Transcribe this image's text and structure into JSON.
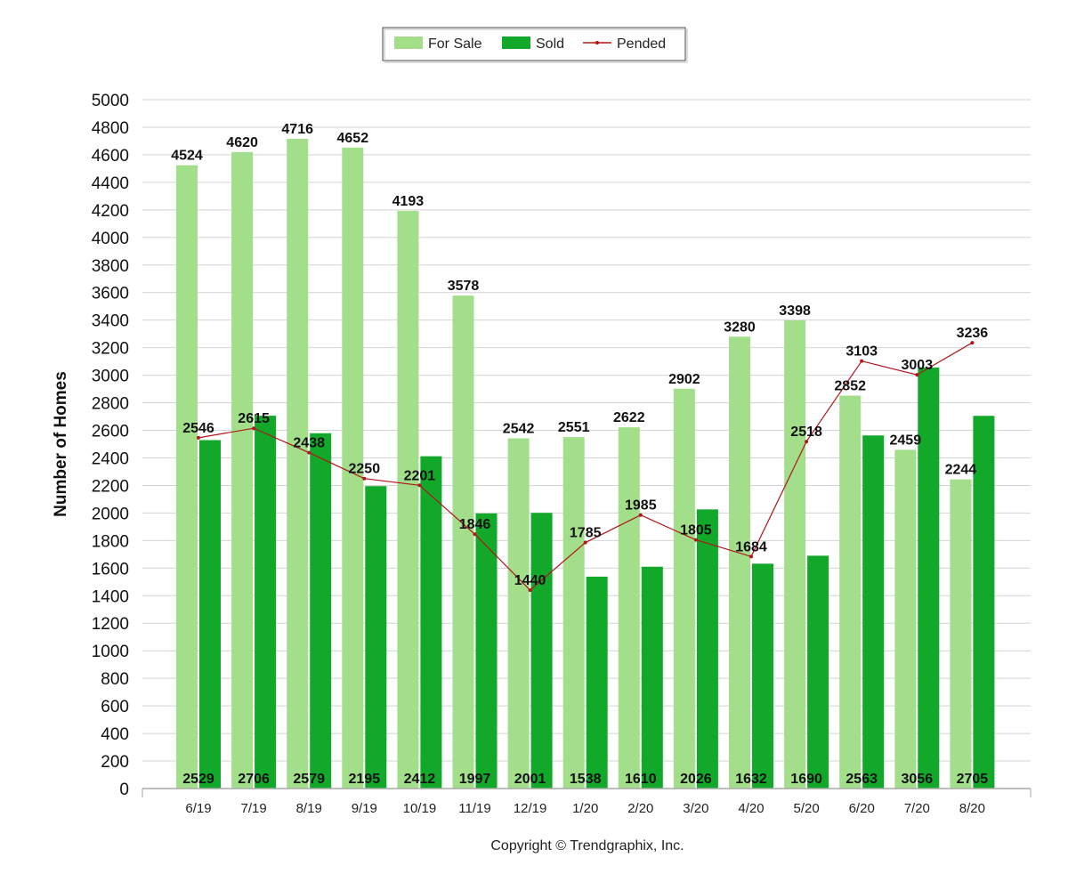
{
  "chart_data": {
    "type": "bar",
    "categories": [
      "6/19",
      "7/19",
      "8/19",
      "9/19",
      "10/19",
      "11/19",
      "12/19",
      "1/20",
      "2/20",
      "3/20",
      "4/20",
      "5/20",
      "6/20",
      "7/20",
      "8/20"
    ],
    "series": [
      {
        "name": "For Sale",
        "kind": "bar",
        "color": "#a3df8a",
        "values": [
          4524,
          4620,
          4716,
          4652,
          4193,
          3578,
          2542,
          2551,
          2622,
          2902,
          3280,
          3398,
          2852,
          2459,
          2244
        ]
      },
      {
        "name": "Sold",
        "kind": "bar",
        "color": "#12a82a",
        "values": [
          2529,
          2706,
          2579,
          2195,
          2412,
          1997,
          2001,
          1538,
          1610,
          2026,
          1632,
          1690,
          2563,
          3056,
          2705
        ]
      },
      {
        "name": "Pended",
        "kind": "line",
        "color": "#b0161a",
        "values": [
          2546,
          2615,
          2438,
          2250,
          2201,
          1846,
          1440,
          1785,
          1985,
          1805,
          1684,
          2518,
          3103,
          3003,
          3236
        ]
      }
    ],
    "ylabel": "Number of Homes",
    "xlabel": "",
    "ylim": [
      0,
      5000
    ],
    "ytick_step": 200,
    "grid": true,
    "legend_position": "top-center"
  },
  "footer": {
    "copyright": "Copyright © Trendgraphix, Inc."
  }
}
